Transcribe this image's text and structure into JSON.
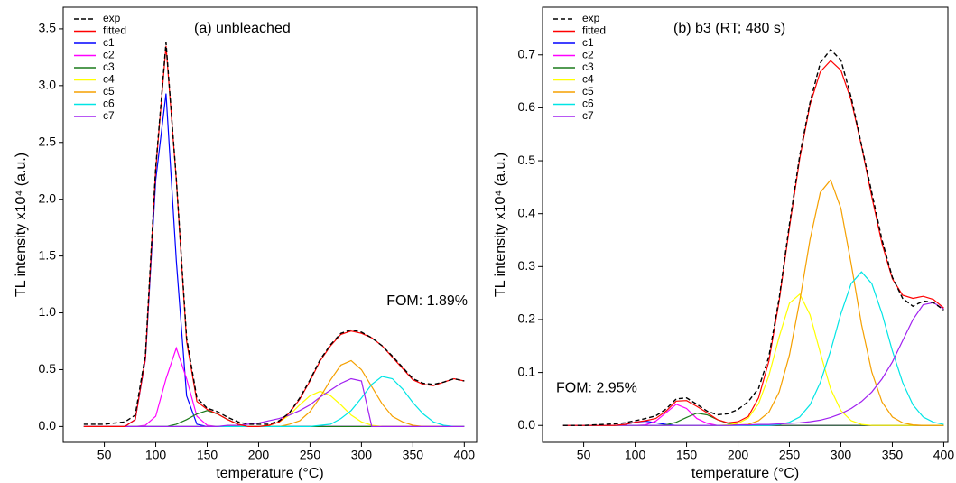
{
  "chart_data": [
    {
      "type": "line",
      "title": "(a) unbleached",
      "annotation": "FOM: 1.89%",
      "x_label": "temperature (°C)",
      "y_label": "TL intensity x10⁴ (a.u.)",
      "xlim": [
        10,
        412
      ],
      "ylim": [
        -0.14,
        3.69
      ],
      "xticks": [
        50,
        100,
        150,
        200,
        250,
        300,
        350,
        400
      ],
      "yticks": [
        {
          "value": 0,
          "label": "0.0"
        },
        0.5,
        {
          "value": 1,
          "label": "1.0"
        },
        1.5,
        {
          "value": 2,
          "label": "2.0"
        },
        2.5,
        {
          "value": 3,
          "label": "3.0"
        },
        3.5
      ],
      "x": [
        30,
        40,
        50,
        60,
        70,
        80,
        90,
        100,
        110,
        120,
        130,
        140,
        150,
        160,
        170,
        180,
        190,
        200,
        210,
        220,
        230,
        240,
        250,
        260,
        270,
        280,
        290,
        300,
        310,
        320,
        330,
        340,
        350,
        360,
        370,
        380,
        390,
        400
      ],
      "series": [
        {
          "name": "exp",
          "color": "#000000",
          "line_style": "dashed",
          "values": [
            0.02,
            0.02,
            0.02,
            0.03,
            0.04,
            0.1,
            0.63,
            2.28,
            3.38,
            2.18,
            0.78,
            0.25,
            0.16,
            0.13,
            0.08,
            0.04,
            0.02,
            0.02,
            0.02,
            0.05,
            0.12,
            0.25,
            0.41,
            0.59,
            0.72,
            0.82,
            0.85,
            0.83,
            0.78,
            0.71,
            0.62,
            0.52,
            0.42,
            0.38,
            0.37,
            0.39,
            0.42,
            0.4
          ]
        },
        {
          "name": "fitted",
          "color": "#ff0000",
          "values": [
            0,
            0,
            0,
            0,
            0,
            0.06,
            0.6,
            2.26,
            3.35,
            2.17,
            0.75,
            0.22,
            0.15,
            0.11,
            0.06,
            0.02,
            0,
            0,
            0.01,
            0.04,
            0.12,
            0.24,
            0.4,
            0.58,
            0.71,
            0.81,
            0.84,
            0.82,
            0.78,
            0.71,
            0.61,
            0.51,
            0.41,
            0.37,
            0.36,
            0.39,
            0.42,
            0.4
          ]
        },
        {
          "name": "c1",
          "color": "#0000ff",
          "values": [
            0,
            0,
            0,
            0,
            0,
            0.06,
            0.59,
            2.17,
            2.93,
            1.46,
            0.27,
            0.02,
            0,
            0,
            0,
            0,
            0,
            0,
            0,
            0,
            0,
            0,
            0,
            0,
            0,
            0,
            0,
            0,
            0,
            0,
            0,
            0,
            0,
            0,
            0,
            0,
            0,
            0
          ]
        },
        {
          "name": "c2",
          "color": "#ff00ff",
          "values": [
            0,
            0,
            0,
            0,
            0,
            0,
            0.01,
            0.09,
            0.42,
            0.69,
            0.42,
            0.09,
            0.01,
            0,
            0,
            0,
            0,
            0,
            0,
            0,
            0,
            0,
            0,
            0,
            0,
            0,
            0,
            0,
            0,
            0,
            0,
            0,
            0,
            0,
            0,
            0,
            0,
            0
          ]
        },
        {
          "name": "c3",
          "color": "#1a7a1a",
          "values": [
            0,
            0,
            0,
            0,
            0,
            0,
            0,
            0,
            0,
            0.02,
            0.06,
            0.11,
            0.14,
            0.11,
            0.06,
            0.02,
            0,
            0,
            0,
            0,
            0,
            0,
            0,
            0,
            0,
            0,
            0,
            0,
            0,
            0,
            0,
            0,
            0,
            0,
            0,
            0,
            0,
            0
          ]
        },
        {
          "name": "c4",
          "color": "#ffff00",
          "values": [
            0,
            0,
            0,
            0,
            0,
            0,
            0,
            0,
            0,
            0,
            0,
            0,
            0,
            0,
            0,
            0,
            0,
            0,
            0.01,
            0.04,
            0.1,
            0.19,
            0.27,
            0.31,
            0.27,
            0.19,
            0.1,
            0.04,
            0.01,
            0,
            0,
            0,
            0,
            0,
            0,
            0,
            0,
            0
          ]
        },
        {
          "name": "c5",
          "color": "#f5a000",
          "values": [
            0,
            0,
            0,
            0,
            0,
            0,
            0,
            0,
            0,
            0,
            0,
            0,
            0,
            0,
            0,
            0,
            0,
            0,
            0,
            0,
            0.02,
            0.05,
            0.13,
            0.26,
            0.41,
            0.54,
            0.58,
            0.5,
            0.35,
            0.2,
            0.09,
            0.04,
            0.01,
            0,
            0,
            0,
            0,
            0
          ]
        },
        {
          "name": "c6",
          "color": "#00e5e5",
          "values": [
            0,
            0,
            0,
            0,
            0,
            0,
            0,
            0,
            0,
            0,
            0,
            0,
            0,
            0,
            0,
            0,
            0,
            0,
            0,
            0,
            0,
            0,
            0,
            0.01,
            0.02,
            0.07,
            0.14,
            0.25,
            0.37,
            0.44,
            0.42,
            0.33,
            0.21,
            0.11,
            0.04,
            0.01,
            0,
            0
          ]
        },
        {
          "name": "c7",
          "color": "#a020f0",
          "values": [
            0,
            0,
            0,
            0,
            0,
            0,
            0,
            0,
            0,
            0,
            0,
            0,
            0,
            0,
            0.01,
            0.01,
            0.02,
            0.03,
            0.05,
            0.07,
            0.1,
            0.14,
            0.19,
            0.26,
            0.32,
            0.38,
            0.42,
            0.4,
            0,
            0,
            0,
            0,
            0,
            0,
            0,
            0,
            0,
            0
          ]
        }
      ]
    },
    {
      "type": "line",
      "title": "(b) b3 (RT; 480 s)",
      "annotation": "FOM: 2.95%",
      "x_label": "temperature (°C)",
      "y_label": "TL intensity x10⁴ (a.u.)",
      "xlim": [
        10,
        404
      ],
      "ylim": [
        -0.032,
        0.79
      ],
      "xticks": [
        50,
        100,
        150,
        200,
        250,
        300,
        350,
        400
      ],
      "yticks": [
        {
          "value": 0,
          "label": "0.0"
        },
        0.1,
        0.2,
        0.3,
        0.4,
        0.5,
        0.6,
        0.7
      ],
      "x": [
        30,
        40,
        50,
        60,
        70,
        80,
        90,
        100,
        110,
        120,
        130,
        140,
        150,
        160,
        170,
        180,
        190,
        200,
        210,
        220,
        230,
        240,
        250,
        260,
        270,
        280,
        290,
        300,
        310,
        320,
        330,
        340,
        350,
        360,
        370,
        380,
        390,
        400
      ],
      "series": [
        {
          "name": "exp",
          "color": "#000000",
          "line_style": "dashed",
          "values": [
            0,
            0,
            0,
            0.001,
            0.002,
            0.003,
            0.005,
            0.009,
            0.013,
            0.018,
            0.031,
            0.05,
            0.052,
            0.04,
            0.027,
            0.02,
            0.022,
            0.03,
            0.045,
            0.07,
            0.13,
            0.24,
            0.38,
            0.51,
            0.61,
            0.685,
            0.71,
            0.69,
            0.62,
            0.53,
            0.44,
            0.35,
            0.28,
            0.24,
            0.225,
            0.235,
            0.232,
            0.218
          ]
        },
        {
          "name": "fitted",
          "color": "#ff0000",
          "values": [
            0,
            0,
            0,
            0,
            0,
            0,
            0.002,
            0.006,
            0.009,
            0.013,
            0.027,
            0.046,
            0.047,
            0.036,
            0.024,
            0.011,
            0.005,
            0.007,
            0.017,
            0.052,
            0.121,
            0.235,
            0.374,
            0.504,
            0.606,
            0.668,
            0.689,
            0.671,
            0.614,
            0.528,
            0.432,
            0.343,
            0.277,
            0.246,
            0.24,
            0.244,
            0.238,
            0.222
          ]
        },
        {
          "name": "c1",
          "color": "#0000ff",
          "values": [
            0,
            0,
            0,
            0,
            0,
            0,
            0.002,
            0.006,
            0.008,
            0.005,
            0.002,
            0,
            0,
            0,
            0,
            0,
            0,
            0,
            0,
            0,
            0,
            0,
            0,
            0,
            0,
            0,
            0,
            0,
            0,
            0,
            0,
            0,
            0,
            0,
            0,
            0,
            0,
            0
          ]
        },
        {
          "name": "c2",
          "color": "#ff00ff",
          "values": [
            0,
            0,
            0,
            0,
            0,
            0,
            0,
            0,
            0.001,
            0.008,
            0.024,
            0.04,
            0.032,
            0.013,
            0.004,
            0,
            0,
            0,
            0,
            0,
            0,
            0,
            0,
            0,
            0,
            0,
            0,
            0,
            0,
            0,
            0,
            0,
            0,
            0,
            0,
            0,
            0,
            0
          ]
        },
        {
          "name": "c3",
          "color": "#1a7a1a",
          "values": [
            0,
            0,
            0,
            0,
            0,
            0,
            0,
            0,
            0,
            0,
            0.001,
            0.006,
            0.015,
            0.023,
            0.02,
            0.011,
            0.004,
            0.001,
            0,
            0,
            0,
            0,
            0,
            0,
            0,
            0,
            0,
            0,
            0,
            0,
            0,
            0,
            0,
            0,
            0,
            0,
            0,
            0
          ]
        },
        {
          "name": "c4",
          "color": "#ffff00",
          "values": [
            0,
            0,
            0,
            0,
            0,
            0,
            0,
            0,
            0,
            0,
            0,
            0,
            0,
            0,
            0,
            0,
            0.001,
            0.004,
            0.014,
            0.041,
            0.094,
            0.167,
            0.231,
            0.248,
            0.209,
            0.137,
            0.069,
            0.028,
            0.009,
            0.002,
            0,
            0,
            0,
            0,
            0,
            0,
            0,
            0
          ]
        },
        {
          "name": "c5",
          "color": "#f5a000",
          "values": [
            0,
            0,
            0,
            0,
            0,
            0,
            0,
            0,
            0,
            0,
            0,
            0,
            0,
            0,
            0,
            0,
            0,
            0.001,
            0.002,
            0.009,
            0.025,
            0.063,
            0.133,
            0.235,
            0.351,
            0.44,
            0.464,
            0.41,
            0.305,
            0.191,
            0.101,
            0.044,
            0.016,
            0.005,
            0.001,
            0,
            0,
            0
          ]
        },
        {
          "name": "c6",
          "color": "#00e5e5",
          "values": [
            0,
            0,
            0,
            0,
            0,
            0,
            0,
            0,
            0,
            0,
            0,
            0,
            0,
            0,
            0,
            0,
            0,
            0,
            0,
            0,
            0,
            0.002,
            0.006,
            0.016,
            0.039,
            0.081,
            0.141,
            0.211,
            0.268,
            0.29,
            0.268,
            0.211,
            0.141,
            0.081,
            0.039,
            0.016,
            0.006,
            0.002
          ]
        },
        {
          "name": "c7",
          "color": "#a020f0",
          "values": [
            0,
            0,
            0,
            0,
            0,
            0,
            0,
            0,
            0,
            0,
            0,
            0,
            0,
            0,
            0,
            0,
            0,
            0.001,
            0.001,
            0.002,
            0.002,
            0.003,
            0.004,
            0.005,
            0.007,
            0.01,
            0.015,
            0.022,
            0.032,
            0.045,
            0.063,
            0.088,
            0.12,
            0.16,
            0.2,
            0.228,
            0.232,
            0.22
          ]
        }
      ]
    }
  ]
}
